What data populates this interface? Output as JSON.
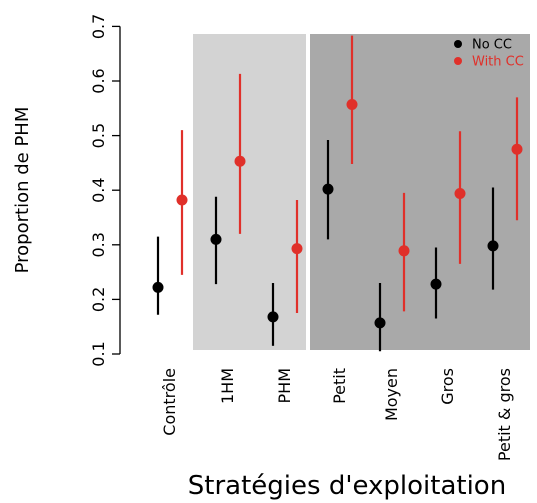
{
  "chart_data": {
    "type": "scatter",
    "title": "",
    "xlabel": "Stratégies d'exploitation",
    "ylabel": "Proportion de PHM",
    "ylim": [
      0.1,
      0.7
    ],
    "yticks": [
      "0.1",
      "0.2",
      "0.3",
      "0.4",
      "0.5",
      "0.6",
      "0.7"
    ],
    "categories": [
      "Contrôle",
      "1HM",
      "PHM",
      "Petit",
      "Moyen",
      "Gros",
      "Petit & gros"
    ],
    "groups": [
      {
        "categories": [
          "1HM",
          "PHM"
        ],
        "color": "#d3d3d3"
      },
      {
        "categories": [
          "Petit",
          "Moyen",
          "Gros",
          "Petit & gros"
        ],
        "color": "#a9a9a9"
      }
    ],
    "legend_position": "top-right",
    "series": [
      {
        "name": "No CC",
        "color": "#000000",
        "values": [
          0.222,
          0.31,
          0.168,
          0.402,
          0.157,
          0.228,
          0.298
        ],
        "lower": [
          0.172,
          0.228,
          0.115,
          0.31,
          0.105,
          0.165,
          0.218
        ],
        "upper": [
          0.315,
          0.388,
          0.23,
          0.492,
          0.23,
          0.295,
          0.405
        ]
      },
      {
        "name": "With CC",
        "color": "#e0302a",
        "values": [
          0.382,
          0.453,
          0.293,
          0.557,
          0.289,
          0.394,
          0.475
        ],
        "lower": [
          0.245,
          0.32,
          0.175,
          0.448,
          0.178,
          0.265,
          0.345
        ],
        "upper": [
          0.51,
          0.613,
          0.382,
          0.683,
          0.395,
          0.508,
          0.57
        ]
      }
    ]
  }
}
